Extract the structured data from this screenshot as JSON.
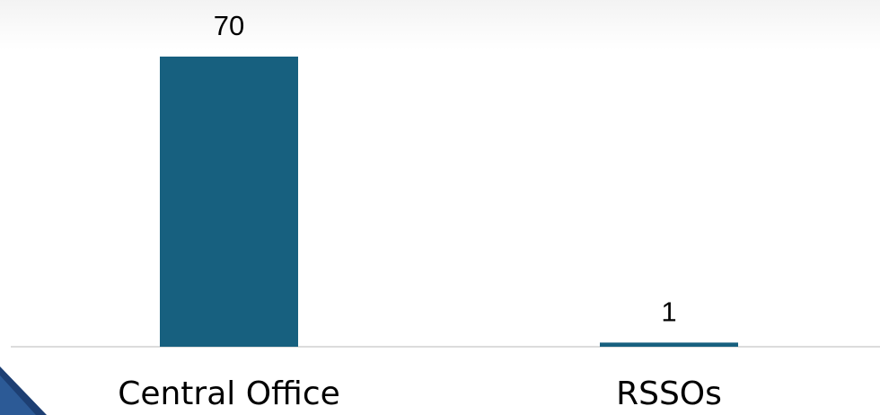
{
  "chart_data": {
    "type": "bar",
    "categories": [
      "Central Office",
      "RSSOs"
    ],
    "values": [
      70,
      1
    ],
    "color": "#17607f"
  }
}
